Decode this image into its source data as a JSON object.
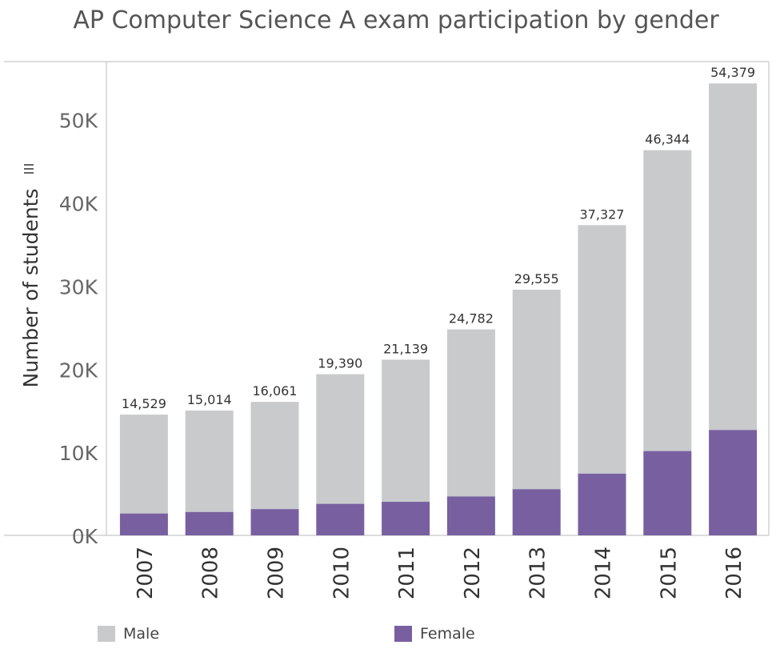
{
  "chart_data": {
    "type": "bar",
    "stacked": true,
    "title": "AP Computer Science A exam participation by gender",
    "xlabel": "",
    "ylabel": "Number of students",
    "ylim": [
      0,
      57000
    ],
    "yticks": [
      0,
      10000,
      20000,
      30000,
      40000,
      50000
    ],
    "ytick_labels": [
      "0K",
      "10K",
      "20K",
      "30K",
      "40K",
      "50K"
    ],
    "categories": [
      "2007",
      "2008",
      "2009",
      "2010",
      "2011",
      "2012",
      "2013",
      "2014",
      "2015",
      "2016"
    ],
    "totals": [
      14529,
      15014,
      16061,
      19390,
      21139,
      24782,
      29555,
      37327,
      46344,
      54379
    ],
    "total_labels": [
      "14,529",
      "15,014",
      "16,061",
      "19,390",
      "21,139",
      "24,782",
      "29,555",
      "37,327",
      "46,344",
      "54,379"
    ],
    "series": [
      {
        "name": "Male",
        "color": "#c8cacc",
        "values": [
          11900,
          12200,
          12900,
          15600,
          17100,
          20100,
          24000,
          29900,
          36200,
          41700
        ]
      },
      {
        "name": "Female",
        "color": "#7860a0",
        "values": [
          2629,
          2814,
          3161,
          3790,
          4039,
          4682,
          5555,
          7427,
          10144,
          12679
        ]
      }
    ],
    "legend_position": "bottom",
    "grid": false
  }
}
